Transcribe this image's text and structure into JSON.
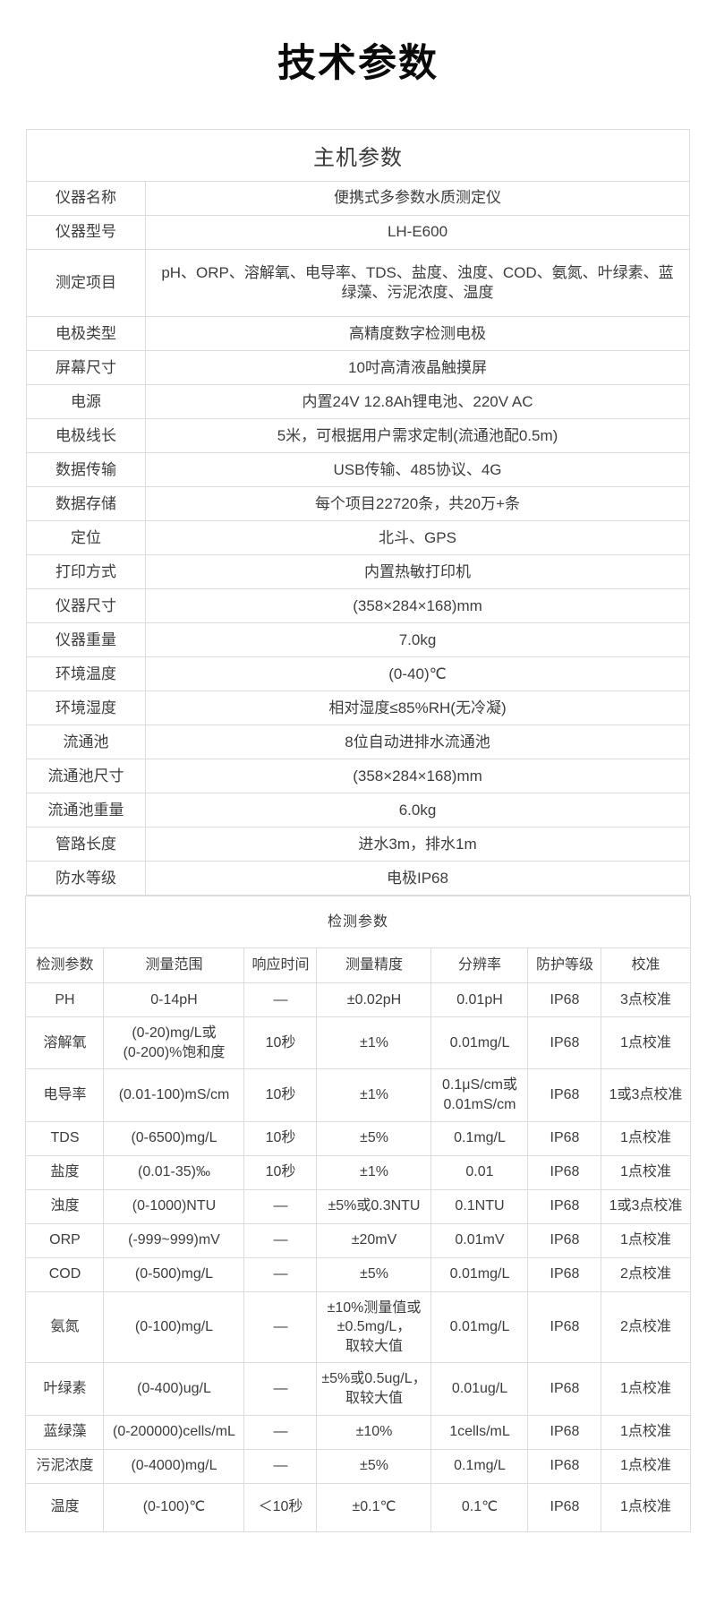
{
  "page_title": "技术参数",
  "host_table": {
    "title": "主机参数",
    "rows": [
      {
        "label": "仪器名称",
        "value": "便携式多参数水质测定仪"
      },
      {
        "label": "仪器型号",
        "value": "LH-E600"
      },
      {
        "label": "测定项目",
        "value": "pH、ORP、溶解氧、电导率、TDS、盐度、浊度、COD、氨氮、叶绿素、蓝绿藻、污泥浓度、温度"
      },
      {
        "label": "电极类型",
        "value": "高精度数字检测电极"
      },
      {
        "label": "屏幕尺寸",
        "value": "10吋高清液晶触摸屏"
      },
      {
        "label": "电源",
        "value": "内置24V 12.8Ah锂电池、220V AC"
      },
      {
        "label": "电极线长",
        "value": "5米，可根据用户需求定制(流通池配0.5m)"
      },
      {
        "label": "数据传输",
        "value": "USB传输、485协议、4G"
      },
      {
        "label": "数据存储",
        "value": "每个项目22720条，共20万+条"
      },
      {
        "label": "定位",
        "value": "北斗、GPS"
      },
      {
        "label": "打印方式",
        "value": "内置热敏打印机"
      },
      {
        "label": "仪器尺寸",
        "value": "(358×284×168)mm"
      },
      {
        "label": "仪器重量",
        "value": "7.0kg"
      },
      {
        "label": "环境温度",
        "value": "(0-40)℃"
      },
      {
        "label": "环境湿度",
        "value": "相对湿度≤85%RH(无冷凝)"
      },
      {
        "label": "流通池",
        "value": "8位自动进排水流通池"
      },
      {
        "label": "流通池尺寸",
        "value": "(358×284×168)mm"
      },
      {
        "label": "流通池重量",
        "value": "6.0kg"
      },
      {
        "label": "管路长度",
        "value": "进水3m，排水1m"
      },
      {
        "label": "防水等级",
        "value": "电极IP68"
      }
    ]
  },
  "detect_table": {
    "title": "检测参数",
    "headers": [
      "检测参数",
      "测量范围",
      "响应时间",
      "测量精度",
      "分辨率",
      "防护等级",
      "校准"
    ],
    "rows": [
      [
        "PH",
        "0-14pH",
        "—",
        "±0.02pH",
        "0.01pH",
        "IP68",
        "3点校准"
      ],
      [
        "溶解氧",
        "(0-20)mg/L或\n(0-200)%饱和度",
        "10秒",
        "±1%",
        "0.01mg/L",
        "IP68",
        "1点校准"
      ],
      [
        "电导率",
        "(0.01-100)mS/cm",
        "10秒",
        "±1%",
        "0.1μS/cm或\n0.01mS/cm",
        "IP68",
        "1或3点校准"
      ],
      [
        "TDS",
        "(0-6500)mg/L",
        "10秒",
        "±5%",
        "0.1mg/L",
        "IP68",
        "1点校准"
      ],
      [
        "盐度",
        "(0.01-35)‰",
        "10秒",
        "±1%",
        "0.01",
        "IP68",
        "1点校准"
      ],
      [
        "浊度",
        "(0-1000)NTU",
        "—",
        "±5%或0.3NTU",
        "0.1NTU",
        "IP68",
        "1或3点校准"
      ],
      [
        "ORP",
        "(-999~999)mV",
        "—",
        "±20mV",
        "0.01mV",
        "IP68",
        "1点校准"
      ],
      [
        "COD",
        "(0-500)mg/L",
        "—",
        "±5%",
        "0.01mg/L",
        "IP68",
        "2点校准"
      ],
      [
        "氨氮",
        "(0-100)mg/L",
        "—",
        "±10%测量值或\n±0.5mg/L，\n取较大值",
        "0.01mg/L",
        "IP68",
        "2点校准"
      ],
      [
        "叶绿素",
        "(0-400)ug/L",
        "—",
        "±5%或0.5ug/L，\n取较大值",
        "0.01ug/L",
        "IP68",
        "1点校准"
      ],
      [
        "蓝绿藻",
        "(0-200000)cells/mL",
        "—",
        "±10%",
        "1cells/mL",
        "IP68",
        "1点校准"
      ],
      [
        "污泥浓度",
        "(0-4000)mg/L",
        "—",
        "±5%",
        "0.1mg/L",
        "IP68",
        "1点校准"
      ],
      [
        "温度",
        "(0-100)℃",
        "＜10秒",
        "±0.1℃",
        "0.1℃",
        "IP68",
        "1点校准"
      ]
    ]
  },
  "colors": {
    "background": "#ffffff",
    "border": "#dcdcdc",
    "text": "#3d3d3d",
    "title": "#0a0a0a"
  }
}
